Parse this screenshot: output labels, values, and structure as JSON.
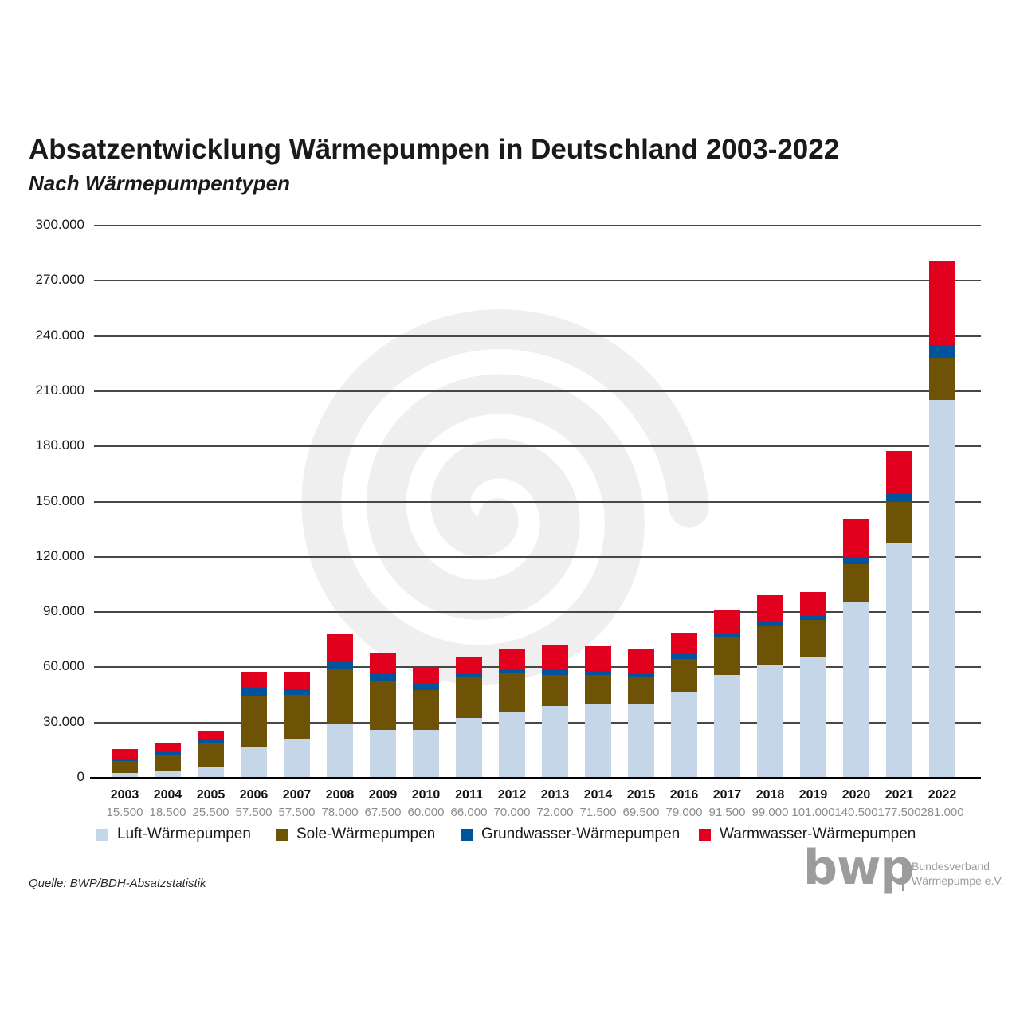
{
  "title": "Absatzentwicklung Wärmepumpen in Deutschland 2003-2022",
  "subtitle": "Nach Wärmepumpentypen",
  "source": "Quelle: BWP/BDH-Absatzstatistik",
  "logo": {
    "text": "bwp",
    "org_line1": "Bundesverband",
    "org_line2": "Wärmepumpe e.V."
  },
  "colors": {
    "luft": "#c5d6e9",
    "sole": "#6e5306",
    "grundwasser": "#00549c",
    "warmwasser": "#e2001f",
    "watermark": "#efeff0",
    "gridline": "#474747",
    "baseline": "#000000",
    "totals_text": "#8c8c8c"
  },
  "chart_data": {
    "type": "bar",
    "stacked": true,
    "title": "Absatzentwicklung Wärmepumpen in Deutschland 2003-2022",
    "subtitle": "Nach Wärmepumpentypen",
    "xlabel": "",
    "ylabel": "",
    "ylim": [
      0,
      300000
    ],
    "ytick_step": 30000,
    "ytick_labels": [
      "0",
      "30.000",
      "60.000",
      "90.000",
      "120.000",
      "150.000",
      "180.000",
      "210.000",
      "240.000",
      "270.000",
      "300.000"
    ],
    "grid": true,
    "legend_position": "bottom",
    "categories": [
      "2003",
      "2004",
      "2005",
      "2006",
      "2007",
      "2008",
      "2009",
      "2010",
      "2011",
      "2012",
      "2013",
      "2014",
      "2015",
      "2016",
      "2017",
      "2018",
      "2019",
      "2020",
      "2021",
      "2022"
    ],
    "totals_labels": [
      "15.500",
      "18.500",
      "25.500",
      "57.500",
      "57.500",
      "78.000",
      "67.500",
      "60.000",
      "66.000",
      "70.000",
      "72.000",
      "71.500",
      "69.500",
      "79.000",
      "91.500",
      "99.000",
      "101.000",
      "140.500",
      "177.500",
      "281.000"
    ],
    "totals": [
      15500,
      18500,
      25500,
      57500,
      57500,
      78000,
      67500,
      60000,
      66000,
      70000,
      72000,
      71500,
      69500,
      79000,
      91500,
      99000,
      101000,
      140500,
      177500,
      281000
    ],
    "series": [
      {
        "name": "Luft-Wärmepumpen",
        "color": "#c5d6e9",
        "values": [
          2500,
          4000,
          5500,
          17000,
          21000,
          29000,
          26000,
          26000,
          32500,
          36000,
          39000,
          40000,
          40000,
          46500,
          56000,
          61000,
          66000,
          95500,
          127500,
          205000
        ]
      },
      {
        "name": "Sole-Wärmepumpen",
        "color": "#6e5306",
        "values": [
          6500,
          8500,
          13500,
          27500,
          24000,
          30000,
          26500,
          21500,
          22000,
          20500,
          17000,
          16000,
          15000,
          18000,
          20500,
          21500,
          19500,
          20500,
          22500,
          23000
        ]
      },
      {
        "name": "Grundwasser-Wärmepumpen",
        "color": "#00549c",
        "values": [
          1500,
          1500,
          2000,
          4500,
          3500,
          4000,
          4500,
          3500,
          2000,
          2000,
          2500,
          2000,
          2000,
          2500,
          1500,
          2000,
          2500,
          4000,
          4000,
          7000
        ]
      },
      {
        "name": "Warmwasser-Wärmepumpen",
        "color": "#e2001f",
        "values": [
          5000,
          4500,
          4500,
          8500,
          9000,
          15000,
          10500,
          9000,
          9500,
          11500,
          13500,
          13500,
          12500,
          12000,
          13500,
          14500,
          13000,
          20500,
          23500,
          46000
        ]
      }
    ]
  }
}
